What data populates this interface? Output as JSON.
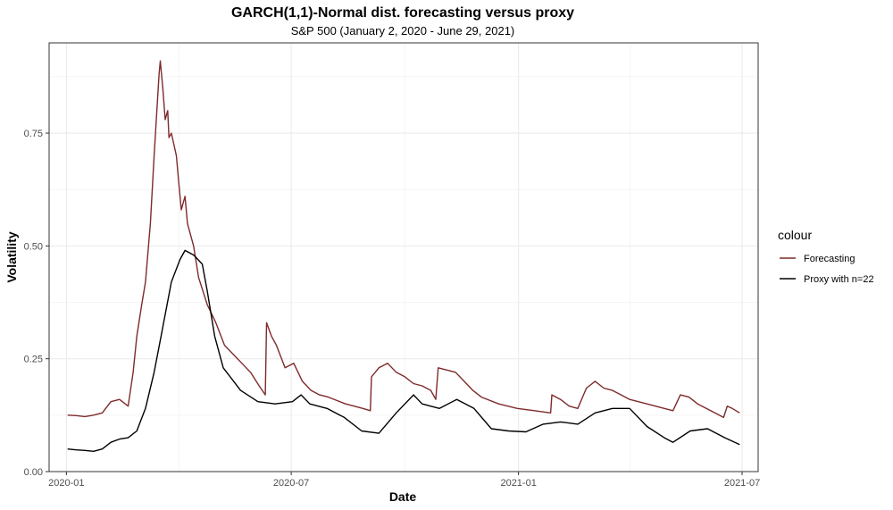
{
  "chart_data": {
    "type": "line",
    "title": "GARCH(1,1)-Normal dist. forecasting versus proxy",
    "subtitle": "S&P 500 (January 2, 2020 - June 29, 2021)",
    "xlabel": "Date",
    "ylabel": "Volatility",
    "xlim": [
      "2019-12-18",
      "2021-07-14"
    ],
    "ylim": [
      0,
      0.95
    ],
    "x_ticks": [
      {
        "date": "2020-01-01",
        "label": "2020-01"
      },
      {
        "date": "2020-07-01",
        "label": "2020-07"
      },
      {
        "date": "2021-01-01",
        "label": "2021-01"
      },
      {
        "date": "2021-07-01",
        "label": "2021-07"
      }
    ],
    "y_ticks": [
      {
        "value": 0,
        "label": "0.00"
      },
      {
        "value": 0.25,
        "label": "0.25"
      },
      {
        "value": 0.5,
        "label": "0.50"
      },
      {
        "value": 0.75,
        "label": "0.75"
      }
    ],
    "y_minor_ticks": [
      0.125,
      0.375,
      0.625,
      0.875
    ],
    "grid": true,
    "legend": {
      "title": "colour",
      "position": "right"
    },
    "series": [
      {
        "name": "Forecasting",
        "color": "#7f2a2a",
        "points": [
          [
            "2020-01-02",
            0.125
          ],
          [
            "2020-01-09",
            0.124
          ],
          [
            "2020-01-16",
            0.122
          ],
          [
            "2020-01-23",
            0.125
          ],
          [
            "2020-01-30",
            0.13
          ],
          [
            "2020-02-06",
            0.155
          ],
          [
            "2020-02-13",
            0.16
          ],
          [
            "2020-02-20",
            0.145
          ],
          [
            "2020-02-24",
            0.22
          ],
          [
            "2020-02-27",
            0.3
          ],
          [
            "2020-03-02",
            0.37
          ],
          [
            "2020-03-05",
            0.42
          ],
          [
            "2020-03-09",
            0.55
          ],
          [
            "2020-03-12",
            0.7
          ],
          [
            "2020-03-16",
            0.88
          ],
          [
            "2020-03-17",
            0.91
          ],
          [
            "2020-03-19",
            0.85
          ],
          [
            "2020-03-21",
            0.78
          ],
          [
            "2020-03-23",
            0.8
          ],
          [
            "2020-03-24",
            0.74
          ],
          [
            "2020-03-26",
            0.75
          ],
          [
            "2020-03-30",
            0.7
          ],
          [
            "2020-04-01",
            0.64
          ],
          [
            "2020-04-03",
            0.58
          ],
          [
            "2020-04-06",
            0.61
          ],
          [
            "2020-04-08",
            0.55
          ],
          [
            "2020-04-13",
            0.5
          ],
          [
            "2020-04-17",
            0.43
          ],
          [
            "2020-04-24",
            0.37
          ],
          [
            "2020-05-01",
            0.33
          ],
          [
            "2020-05-08",
            0.28
          ],
          [
            "2020-05-15",
            0.26
          ],
          [
            "2020-05-22",
            0.24
          ],
          [
            "2020-05-29",
            0.22
          ],
          [
            "2020-06-05",
            0.19
          ],
          [
            "2020-06-10",
            0.17
          ],
          [
            "2020-06-11",
            0.33
          ],
          [
            "2020-06-15",
            0.3
          ],
          [
            "2020-06-19",
            0.28
          ],
          [
            "2020-06-26",
            0.23
          ],
          [
            "2020-07-03",
            0.24
          ],
          [
            "2020-07-10",
            0.2
          ],
          [
            "2020-07-17",
            0.18
          ],
          [
            "2020-07-24",
            0.17
          ],
          [
            "2020-07-31",
            0.165
          ],
          [
            "2020-08-14",
            0.15
          ],
          [
            "2020-08-28",
            0.14
          ],
          [
            "2020-09-03",
            0.135
          ],
          [
            "2020-09-04",
            0.21
          ],
          [
            "2020-09-10",
            0.23
          ],
          [
            "2020-09-17",
            0.24
          ],
          [
            "2020-09-24",
            0.22
          ],
          [
            "2020-10-01",
            0.21
          ],
          [
            "2020-10-08",
            0.195
          ],
          [
            "2020-10-15",
            0.19
          ],
          [
            "2020-10-22",
            0.18
          ],
          [
            "2020-10-26",
            0.16
          ],
          [
            "2020-10-28",
            0.23
          ],
          [
            "2020-11-04",
            0.225
          ],
          [
            "2020-11-11",
            0.22
          ],
          [
            "2020-11-18",
            0.2
          ],
          [
            "2020-11-25",
            0.18
          ],
          [
            "2020-12-02",
            0.165
          ],
          [
            "2020-12-16",
            0.15
          ],
          [
            "2020-12-31",
            0.14
          ],
          [
            "2021-01-14",
            0.135
          ],
          [
            "2021-01-27",
            0.13
          ],
          [
            "2021-01-28",
            0.17
          ],
          [
            "2021-02-04",
            0.16
          ],
          [
            "2021-02-11",
            0.145
          ],
          [
            "2021-02-18",
            0.14
          ],
          [
            "2021-02-25",
            0.185
          ],
          [
            "2021-03-04",
            0.2
          ],
          [
            "2021-03-11",
            0.185
          ],
          [
            "2021-03-18",
            0.18
          ],
          [
            "2021-03-25",
            0.17
          ],
          [
            "2021-04-01",
            0.16
          ],
          [
            "2021-04-15",
            0.15
          ],
          [
            "2021-04-29",
            0.14
          ],
          [
            "2021-05-06",
            0.135
          ],
          [
            "2021-05-12",
            0.17
          ],
          [
            "2021-05-19",
            0.165
          ],
          [
            "2021-05-26",
            0.15
          ],
          [
            "2021-06-02",
            0.14
          ],
          [
            "2021-06-09",
            0.13
          ],
          [
            "2021-06-16",
            0.12
          ],
          [
            "2021-06-19",
            0.145
          ],
          [
            "2021-06-23",
            0.14
          ],
          [
            "2021-06-29",
            0.13
          ]
        ]
      },
      {
        "name": "Proxy with n=22",
        "color": "#000000",
        "points": [
          [
            "2020-01-02",
            0.05
          ],
          [
            "2020-01-09",
            0.048
          ],
          [
            "2020-01-16",
            0.047
          ],
          [
            "2020-01-23",
            0.045
          ],
          [
            "2020-01-30",
            0.05
          ],
          [
            "2020-02-06",
            0.065
          ],
          [
            "2020-02-13",
            0.072
          ],
          [
            "2020-02-20",
            0.075
          ],
          [
            "2020-02-27",
            0.09
          ],
          [
            "2020-03-05",
            0.14
          ],
          [
            "2020-03-12",
            0.22
          ],
          [
            "2020-03-19",
            0.32
          ],
          [
            "2020-03-26",
            0.42
          ],
          [
            "2020-04-02",
            0.47
          ],
          [
            "2020-04-06",
            0.49
          ],
          [
            "2020-04-13",
            0.48
          ],
          [
            "2020-04-20",
            0.46
          ],
          [
            "2020-04-24",
            0.4
          ],
          [
            "2020-04-30",
            0.3
          ],
          [
            "2020-05-07",
            0.23
          ],
          [
            "2020-05-21",
            0.18
          ],
          [
            "2020-06-04",
            0.155
          ],
          [
            "2020-06-18",
            0.15
          ],
          [
            "2020-07-02",
            0.155
          ],
          [
            "2020-07-09",
            0.17
          ],
          [
            "2020-07-16",
            0.15
          ],
          [
            "2020-07-30",
            0.14
          ],
          [
            "2020-08-13",
            0.12
          ],
          [
            "2020-08-27",
            0.09
          ],
          [
            "2020-09-10",
            0.085
          ],
          [
            "2020-09-24",
            0.13
          ],
          [
            "2020-10-08",
            0.17
          ],
          [
            "2020-10-15",
            0.15
          ],
          [
            "2020-10-29",
            0.14
          ],
          [
            "2020-11-12",
            0.16
          ],
          [
            "2020-11-26",
            0.14
          ],
          [
            "2020-12-10",
            0.095
          ],
          [
            "2020-12-24",
            0.09
          ],
          [
            "2021-01-07",
            0.088
          ],
          [
            "2021-01-21",
            0.105
          ],
          [
            "2021-02-04",
            0.11
          ],
          [
            "2021-02-18",
            0.105
          ],
          [
            "2021-03-04",
            0.13
          ],
          [
            "2021-03-18",
            0.14
          ],
          [
            "2021-04-01",
            0.14
          ],
          [
            "2021-04-15",
            0.1
          ],
          [
            "2021-04-29",
            0.075
          ],
          [
            "2021-05-06",
            0.065
          ],
          [
            "2021-05-20",
            0.09
          ],
          [
            "2021-06-03",
            0.095
          ],
          [
            "2021-06-17",
            0.075
          ],
          [
            "2021-06-29",
            0.06
          ]
        ]
      }
    ]
  }
}
